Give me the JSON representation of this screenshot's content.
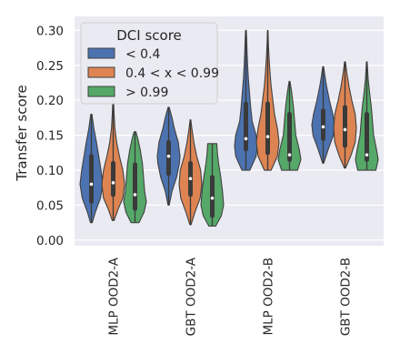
{
  "chart_data": {
    "type": "violin",
    "ylabel": "Transfer score",
    "xlabel": "",
    "ylim": [
      -0.008,
      0.32
    ],
    "yticks": [
      "0.00",
      "0.05",
      "0.10",
      "0.15",
      "0.20",
      "0.25",
      "0.30"
    ],
    "grid": true,
    "legend": {
      "title": "DCI score",
      "placement": "top-left"
    },
    "categories": [
      "MLP  OOD2-A",
      "GBT  OOD2-A",
      "MLP  OOD2-B",
      "GBT  OOD2-B"
    ],
    "series": [
      {
        "name": "< 0.4",
        "color": "#4c72b0",
        "violins": [
          {
            "min": 0.025,
            "q1": 0.055,
            "median": 0.08,
            "q3": 0.12,
            "max": 0.18,
            "profile": [
              [
                0.025,
                0.08
              ],
              [
                0.04,
                0.35
              ],
              [
                0.06,
                0.8
              ],
              [
                0.08,
                1.0
              ],
              [
                0.1,
                0.85
              ],
              [
                0.12,
                0.65
              ],
              [
                0.14,
                0.45
              ],
              [
                0.16,
                0.22
              ],
              [
                0.18,
                0.05
              ]
            ]
          },
          {
            "min": 0.05,
            "q1": 0.095,
            "median": 0.12,
            "q3": 0.14,
            "max": 0.19,
            "profile": [
              [
                0.05,
                0.05
              ],
              [
                0.07,
                0.3
              ],
              [
                0.09,
                0.7
              ],
              [
                0.11,
                0.95
              ],
              [
                0.12,
                1.0
              ],
              [
                0.14,
                0.85
              ],
              [
                0.16,
                0.5
              ],
              [
                0.175,
                0.3
              ],
              [
                0.19,
                0.05
              ]
            ]
          },
          {
            "min": 0.1,
            "q1": 0.13,
            "median": 0.145,
            "q3": 0.195,
            "max": 0.3,
            "profile": [
              [
                0.1,
                0.35
              ],
              [
                0.12,
                0.9
              ],
              [
                0.135,
                1.0
              ],
              [
                0.15,
                0.9
              ],
              [
                0.17,
                0.55
              ],
              [
                0.19,
                0.42
              ],
              [
                0.21,
                0.32
              ],
              [
                0.23,
                0.22
              ],
              [
                0.25,
                0.15
              ],
              [
                0.27,
                0.1
              ],
              [
                0.29,
                0.06
              ],
              [
                0.3,
                0.03
              ]
            ]
          },
          {
            "min": 0.11,
            "q1": 0.145,
            "median": 0.162,
            "q3": 0.185,
            "max": 0.248,
            "profile": [
              [
                0.11,
                0.05
              ],
              [
                0.13,
                0.45
              ],
              [
                0.15,
                0.9
              ],
              [
                0.165,
                1.0
              ],
              [
                0.18,
                0.85
              ],
              [
                0.2,
                0.55
              ],
              [
                0.22,
                0.3
              ],
              [
                0.235,
                0.15
              ],
              [
                0.248,
                0.04
              ]
            ]
          }
        ]
      },
      {
        "name": "0.4 < x < 0.99",
        "color": "#dd8452",
        "violins": [
          {
            "min": 0.028,
            "q1": 0.065,
            "median": 0.082,
            "q3": 0.11,
            "max": 0.2,
            "profile": [
              [
                0.028,
                0.08
              ],
              [
                0.045,
                0.45
              ],
              [
                0.06,
                0.85
              ],
              [
                0.08,
                1.0
              ],
              [
                0.1,
                0.85
              ],
              [
                0.12,
                0.55
              ],
              [
                0.14,
                0.3
              ],
              [
                0.16,
                0.15
              ],
              [
                0.18,
                0.08
              ],
              [
                0.2,
                0.03
              ]
            ]
          },
          {
            "min": 0.022,
            "q1": 0.065,
            "median": 0.088,
            "q3": 0.11,
            "max": 0.172,
            "profile": [
              [
                0.022,
                0.05
              ],
              [
                0.04,
                0.4
              ],
              [
                0.06,
                0.85
              ],
              [
                0.08,
                1.0
              ],
              [
                0.1,
                0.9
              ],
              [
                0.12,
                0.55
              ],
              [
                0.14,
                0.3
              ],
              [
                0.16,
                0.12
              ],
              [
                0.172,
                0.03
              ]
            ]
          },
          {
            "min": 0.1,
            "q1": 0.125,
            "median": 0.148,
            "q3": 0.195,
            "max": 0.3,
            "profile": [
              [
                0.1,
                0.3
              ],
              [
                0.12,
                0.85
              ],
              [
                0.14,
                1.0
              ],
              [
                0.16,
                0.85
              ],
              [
                0.18,
                0.6
              ],
              [
                0.2,
                0.45
              ],
              [
                0.22,
                0.3
              ],
              [
                0.24,
                0.2
              ],
              [
                0.26,
                0.12
              ],
              [
                0.28,
                0.06
              ],
              [
                0.3,
                0.02
              ]
            ]
          },
          {
            "min": 0.103,
            "q1": 0.135,
            "median": 0.158,
            "q3": 0.19,
            "max": 0.255,
            "profile": [
              [
                0.103,
                0.05
              ],
              [
                0.12,
                0.5
              ],
              [
                0.14,
                0.9
              ],
              [
                0.16,
                1.0
              ],
              [
                0.18,
                0.9
              ],
              [
                0.2,
                0.6
              ],
              [
                0.22,
                0.35
              ],
              [
                0.24,
                0.15
              ],
              [
                0.255,
                0.04
              ]
            ]
          }
        ]
      },
      {
        "name": "> 0.99",
        "color": "#55a868",
        "violins": [
          {
            "min": 0.025,
            "q1": 0.045,
            "median": 0.065,
            "q3": 0.108,
            "max": 0.155,
            "profile": [
              [
                0.025,
                0.35
              ],
              [
                0.04,
                0.8
              ],
              [
                0.055,
                1.0
              ],
              [
                0.07,
                0.85
              ],
              [
                0.09,
                0.75
              ],
              [
                0.11,
                0.65
              ],
              [
                0.13,
                0.45
              ],
              [
                0.145,
                0.25
              ],
              [
                0.155,
                0.08
              ]
            ]
          },
          {
            "min": 0.02,
            "q1": 0.035,
            "median": 0.06,
            "q3": 0.09,
            "max": 0.138,
            "profile": [
              [
                0.02,
                0.3
              ],
              [
                0.035,
                0.8
              ],
              [
                0.05,
                1.0
              ],
              [
                0.07,
                0.9
              ],
              [
                0.09,
                0.75
              ],
              [
                0.11,
                0.55
              ],
              [
                0.125,
                0.45
              ],
              [
                0.138,
                0.4
              ]
            ]
          },
          {
            "min": 0.1,
            "q1": 0.115,
            "median": 0.122,
            "q3": 0.18,
            "max": 0.227,
            "profile": [
              [
                0.1,
                0.7
              ],
              [
                0.115,
                1.0
              ],
              [
                0.13,
                0.85
              ],
              [
                0.15,
                0.55
              ],
              [
                0.17,
                0.45
              ],
              [
                0.19,
                0.35
              ],
              [
                0.21,
                0.2
              ],
              [
                0.227,
                0.04
              ]
            ]
          },
          {
            "min": 0.1,
            "q1": 0.115,
            "median": 0.122,
            "q3": 0.18,
            "max": 0.255,
            "profile": [
              [
                0.1,
                0.8
              ],
              [
                0.115,
                1.0
              ],
              [
                0.13,
                0.85
              ],
              [
                0.15,
                0.6
              ],
              [
                0.17,
                0.5
              ],
              [
                0.19,
                0.4
              ],
              [
                0.21,
                0.25
              ],
              [
                0.23,
                0.12
              ],
              [
                0.255,
                0.03
              ]
            ]
          }
        ]
      }
    ]
  }
}
